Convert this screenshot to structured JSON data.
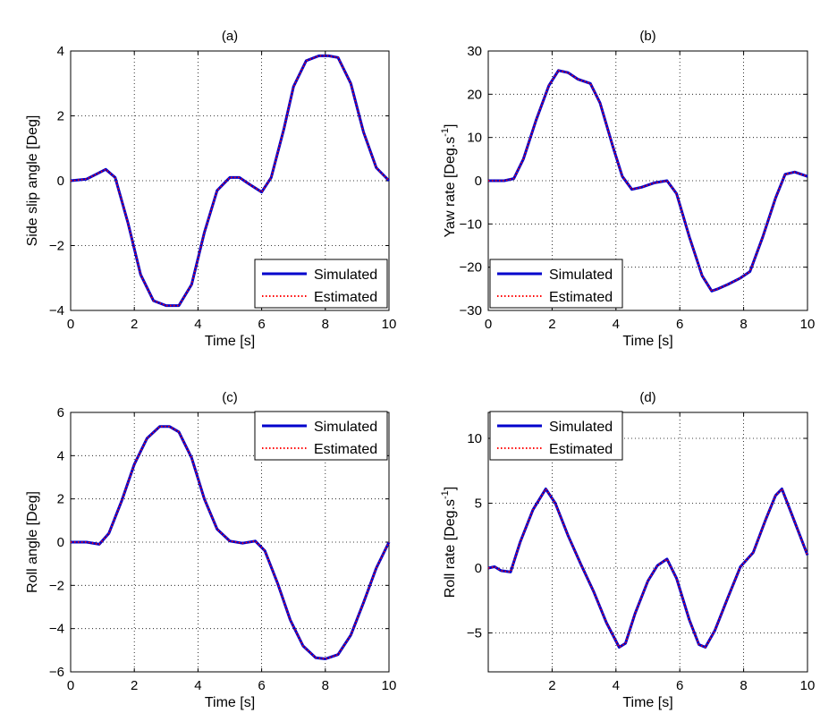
{
  "colors": {
    "simulated": "#0000cc",
    "estimated": "#ff0000",
    "grid": "#000000"
  },
  "chart_data": [
    {
      "type": "line",
      "title": "(a)",
      "xlabel": "Time [s]",
      "ylabel": "Side slip angle [Deg]",
      "xlim": [
        0,
        10
      ],
      "ylim": [
        -4,
        4
      ],
      "xticks": [
        0,
        2,
        4,
        6,
        8,
        10
      ],
      "yticks": [
        -4,
        -2,
        0,
        2,
        4
      ],
      "grid": true,
      "legend_position": "bottom-right",
      "legend_entries": [
        "Simulated",
        "Estimated"
      ],
      "x": [
        0,
        0.5,
        0.8,
        1.1,
        1.4,
        1.8,
        2.2,
        2.6,
        3.0,
        3.4,
        3.8,
        4.2,
        4.6,
        5.0,
        5.3,
        5.6,
        6.0,
        6.3,
        6.7,
        7.0,
        7.4,
        7.8,
        8.1,
        8.4,
        8.8,
        9.2,
        9.6,
        10.0
      ],
      "series": [
        {
          "name": "Simulated",
          "values": [
            0,
            0.05,
            0.2,
            0.35,
            0.1,
            -1.3,
            -2.9,
            -3.7,
            -3.85,
            -3.85,
            -3.2,
            -1.6,
            -0.3,
            0.1,
            0.1,
            -0.1,
            -0.35,
            0.1,
            1.6,
            2.9,
            3.7,
            3.85,
            3.85,
            3.8,
            3.0,
            1.5,
            0.4,
            0
          ]
        },
        {
          "name": "Estimated",
          "values": [
            0,
            0.05,
            0.2,
            0.35,
            0.1,
            -1.3,
            -2.9,
            -3.7,
            -3.85,
            -3.85,
            -3.2,
            -1.6,
            -0.3,
            0.1,
            0.1,
            -0.1,
            -0.35,
            0.1,
            1.6,
            2.9,
            3.7,
            3.85,
            3.85,
            3.8,
            3.0,
            1.5,
            0.4,
            0
          ]
        }
      ]
    },
    {
      "type": "line",
      "title": "(b)",
      "xlabel": "Time [s]",
      "ylabel": "Yaw rate [Deg.s",
      "ylabel_sup": "-1",
      "ylabel_end": "]",
      "xlim": [
        0,
        10
      ],
      "ylim": [
        -30,
        30
      ],
      "xticks": [
        0,
        2,
        4,
        6,
        8,
        10
      ],
      "yticks": [
        -30,
        -20,
        -10,
        0,
        10,
        20,
        30
      ],
      "grid": true,
      "legend_position": "bottom-left",
      "legend_entries": [
        "Simulated",
        "Estimated"
      ],
      "x": [
        0,
        0.5,
        0.8,
        1.1,
        1.5,
        1.9,
        2.2,
        2.5,
        2.8,
        3.2,
        3.5,
        3.9,
        4.2,
        4.5,
        4.8,
        5.2,
        5.6,
        5.9,
        6.3,
        6.7,
        7.0,
        7.2,
        7.5,
        7.9,
        8.2,
        8.6,
        9.0,
        9.3,
        9.6,
        10.0
      ],
      "series": [
        {
          "name": "Simulated",
          "values": [
            0,
            0,
            0.5,
            5,
            14,
            22,
            25.5,
            25,
            23.5,
            22.5,
            18,
            8,
            1,
            -2,
            -1.5,
            -0.5,
            0,
            -3,
            -13,
            -22,
            -25.5,
            -25,
            -24,
            -22.5,
            -21,
            -13,
            -4,
            1.5,
            2,
            1
          ]
        },
        {
          "name": "Estimated",
          "values": [
            0,
            0,
            0.5,
            5,
            14,
            22,
            25.5,
            25,
            23.5,
            22.5,
            18,
            8,
            1,
            -2,
            -1.5,
            -0.5,
            0,
            -3,
            -13,
            -22,
            -25.5,
            -25,
            -24,
            -22.5,
            -21,
            -13,
            -4,
            1.5,
            2,
            1
          ]
        }
      ]
    },
    {
      "type": "line",
      "title": "(c)",
      "xlabel": "Time [s]",
      "ylabel": "Roll angle [Deg]",
      "xlim": [
        0,
        10
      ],
      "ylim": [
        -6,
        6
      ],
      "xticks": [
        0,
        2,
        4,
        6,
        8,
        10
      ],
      "yticks": [
        -6,
        -4,
        -2,
        0,
        2,
        4,
        6
      ],
      "grid": true,
      "legend_position": "top-right",
      "legend_entries": [
        "Simulated",
        "Estimated"
      ],
      "x": [
        0,
        0.5,
        0.9,
        1.2,
        1.6,
        2.0,
        2.4,
        2.8,
        3.1,
        3.4,
        3.8,
        4.2,
        4.6,
        5.0,
        5.4,
        5.8,
        6.1,
        6.5,
        6.9,
        7.3,
        7.7,
        8.0,
        8.4,
        8.8,
        9.2,
        9.6,
        10.0
      ],
      "series": [
        {
          "name": "Simulated",
          "values": [
            0,
            0,
            -0.1,
            0.4,
            1.9,
            3.6,
            4.8,
            5.35,
            5.35,
            5.1,
            3.9,
            2.0,
            0.6,
            0.05,
            -0.05,
            0.05,
            -0.4,
            -1.9,
            -3.6,
            -4.8,
            -5.35,
            -5.4,
            -5.2,
            -4.3,
            -2.8,
            -1.2,
            0
          ]
        },
        {
          "name": "Estimated",
          "values": [
            0,
            0,
            -0.1,
            0.4,
            1.9,
            3.6,
            4.8,
            5.35,
            5.35,
            5.1,
            3.9,
            2.0,
            0.6,
            0.05,
            -0.05,
            0.05,
            -0.4,
            -1.9,
            -3.6,
            -4.8,
            -5.35,
            -5.4,
            -5.2,
            -4.3,
            -2.8,
            -1.2,
            0
          ]
        }
      ]
    },
    {
      "type": "line",
      "title": "(d)",
      "xlabel": "Time [s]",
      "ylabel": "Roll rate [Deg.s",
      "ylabel_sup": "-1",
      "ylabel_end": "]",
      "xlim": [
        0,
        10
      ],
      "ylim": [
        -8,
        12
      ],
      "xticks": [
        2,
        4,
        6,
        8,
        10
      ],
      "yticks": [
        -5,
        0,
        5,
        10
      ],
      "grid": true,
      "legend_position": "top-left",
      "legend_entries": [
        "Simulated",
        "Estimated"
      ],
      "x": [
        0,
        0.2,
        0.4,
        0.7,
        1.0,
        1.4,
        1.8,
        2.1,
        2.5,
        2.9,
        3.3,
        3.7,
        4.1,
        4.3,
        4.6,
        5.0,
        5.3,
        5.6,
        5.9,
        6.3,
        6.6,
        6.8,
        7.1,
        7.5,
        7.9,
        8.3,
        8.7,
        9.0,
        9.2,
        9.5,
        10.0
      ],
      "series": [
        {
          "name": "Simulated",
          "values": [
            0,
            0.1,
            -0.2,
            -0.3,
            2.0,
            4.5,
            6.1,
            5.0,
            2.5,
            0.3,
            -1.8,
            -4.2,
            -6.1,
            -5.8,
            -3.5,
            -1.0,
            0.2,
            0.7,
            -0.8,
            -4.0,
            -5.9,
            -6.1,
            -4.8,
            -2.3,
            0.1,
            1.2,
            3.8,
            5.6,
            6.1,
            4.2,
            1.0
          ]
        },
        {
          "name": "Estimated",
          "values": [
            0,
            0.1,
            -0.2,
            -0.3,
            2.0,
            4.5,
            6.1,
            5.0,
            2.5,
            0.3,
            -1.8,
            -4.2,
            -6.1,
            -5.8,
            -3.5,
            -1.0,
            0.2,
            0.7,
            -0.8,
            -4.0,
            -5.9,
            -6.1,
            -4.8,
            -2.3,
            0.1,
            1.2,
            3.8,
            5.6,
            6.1,
            4.2,
            1.0
          ]
        }
      ]
    }
  ]
}
